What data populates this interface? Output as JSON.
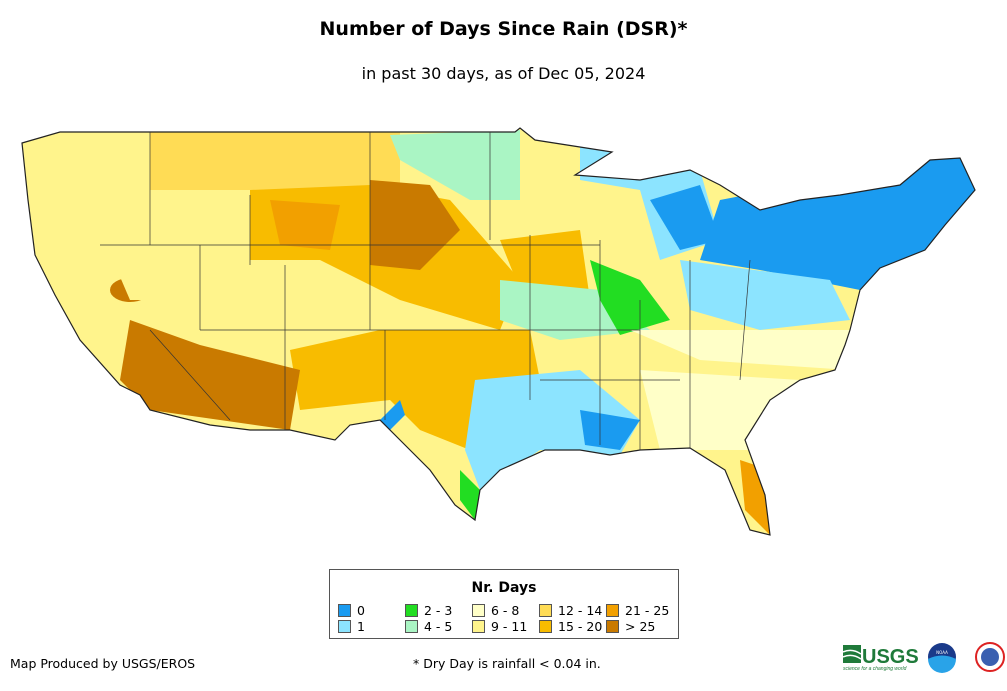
{
  "header": {
    "title": "Number of Days Since Rain (DSR)*",
    "subtitle": "in past 30 days, as of Dec 05, 2024"
  },
  "legend": {
    "title": "Nr. Days",
    "items": [
      {
        "label": "0",
        "color": "#1a9bf0"
      },
      {
        "label": "1",
        "color": "#8ce4ff"
      },
      {
        "label": "2 - 3",
        "color": "#22dd22"
      },
      {
        "label": "4 - 5",
        "color": "#aaf5c4"
      },
      {
        "label": "6 - 8",
        "color": "#ffffc8"
      },
      {
        "label": "9 - 11",
        "color": "#fff48c"
      },
      {
        "label": "12 - 14",
        "color": "#ffdc55"
      },
      {
        "label": "15 - 20",
        "color": "#f8bc00"
      },
      {
        "label": "21 - 25",
        "color": "#f2a000"
      },
      {
        "label": "> 25",
        "color": "#c97a00"
      }
    ]
  },
  "footer": {
    "credit": "Map Produced by USGS/EROS",
    "note": "* Dry Day is rainfall < 0.04 in."
  },
  "logos": {
    "usgs": "USGS",
    "usgs_tagline": "science for a changing world",
    "noaa": "NOAA",
    "nws": "NATIONAL WEATHER SERVICE"
  }
}
